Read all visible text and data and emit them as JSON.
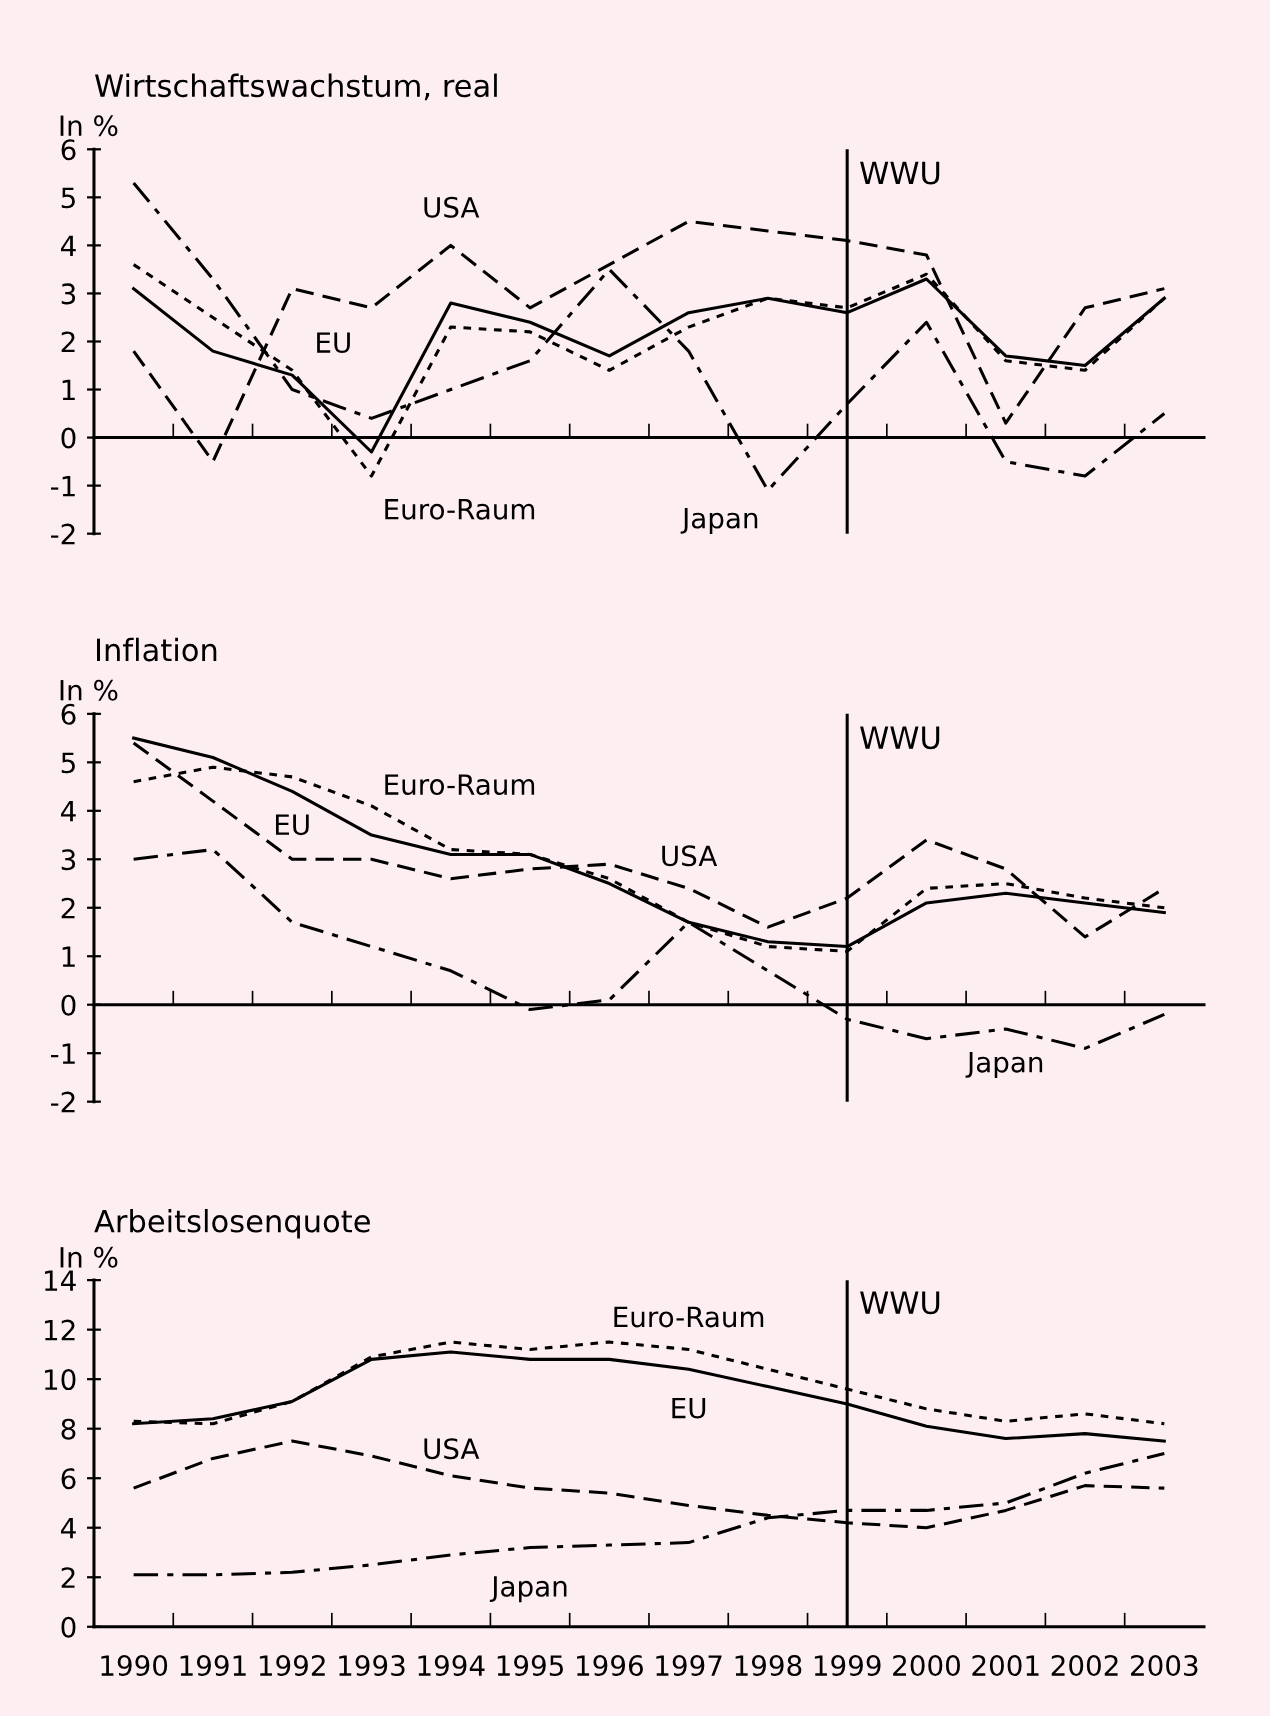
{
  "chart_data": [
    {
      "type": "line",
      "title": "Wirtschaftswachstum, real",
      "ylabel": "In %",
      "categories": [
        "1990",
        "1991",
        "1992",
        "1993",
        "1994",
        "1995",
        "1996",
        "1997",
        "1998",
        "1999",
        "2000",
        "2001",
        "2002",
        "2003"
      ],
      "series": [
        {
          "name": "EU",
          "color": "#000000",
          "line_style": "solid",
          "values": [
            3.1,
            1.8,
            1.3,
            -0.3,
            2.8,
            2.4,
            1.7,
            2.6,
            2.9,
            2.6,
            3.3,
            1.7,
            1.5,
            2.9
          ]
        },
        {
          "name": "Euro-Raum",
          "color": "#000000",
          "line_style": "dotted",
          "values": [
            3.6,
            2.5,
            1.4,
            -0.8,
            2.3,
            2.2,
            1.4,
            2.3,
            2.9,
            2.7,
            3.4,
            1.6,
            1.4,
            2.9
          ]
        },
        {
          "name": "USA",
          "color": "#000000",
          "line_style": "dashed",
          "values": [
            1.8,
            -0.5,
            3.1,
            2.7,
            4.0,
            2.7,
            3.6,
            4.5,
            4.3,
            4.1,
            3.8,
            0.3,
            2.7,
            3.1
          ]
        },
        {
          "name": "Japan",
          "color": "#000000",
          "line_style": "dashdot",
          "values": [
            5.3,
            3.3,
            1.0,
            0.4,
            1.0,
            1.6,
            3.5,
            1.8,
            -1.1,
            0.7,
            2.4,
            -0.5,
            -0.8,
            0.5
          ]
        }
      ],
      "ref_lines": [
        {
          "axis": "x",
          "value": "1999",
          "label": "WWU"
        }
      ],
      "ylim": [
        -2,
        6
      ],
      "yticks": [
        -2,
        -1,
        0,
        1,
        2,
        3,
        4,
        5,
        6
      ],
      "tick_labels": "y"
    },
    {
      "type": "line",
      "title": "Inflation",
      "ylabel": "In %",
      "categories": [
        "1990",
        "1991",
        "1992",
        "1993",
        "1994",
        "1995",
        "1996",
        "1997",
        "1998",
        "1999",
        "2000",
        "2001",
        "2002",
        "2003"
      ],
      "series": [
        {
          "name": "EU",
          "color": "#000000",
          "line_style": "solid",
          "values": [
            5.5,
            5.1,
            4.4,
            3.5,
            3.1,
            3.1,
            2.5,
            1.7,
            1.3,
            1.2,
            2.1,
            2.3,
            2.1,
            1.9
          ]
        },
        {
          "name": "Euro-Raum",
          "color": "#000000",
          "line_style": "dotted",
          "values": [
            4.6,
            4.9,
            4.7,
            4.1,
            3.2,
            3.1,
            2.6,
            1.7,
            1.2,
            1.1,
            2.4,
            2.5,
            2.2,
            2.0
          ]
        },
        {
          "name": "USA",
          "color": "#000000",
          "line_style": "dashed",
          "values": [
            5.4,
            4.2,
            3.0,
            3.0,
            2.6,
            2.8,
            2.9,
            2.4,
            1.6,
            2.2,
            3.4,
            2.8,
            1.4,
            2.4
          ]
        },
        {
          "name": "Japan",
          "color": "#000000",
          "line_style": "dashdot",
          "values": [
            3.0,
            3.2,
            1.7,
            1.2,
            0.7,
            -0.1,
            0.1,
            1.7,
            0.7,
            -0.3,
            -0.7,
            -0.5,
            -0.9,
            -0.2
          ]
        }
      ],
      "ref_lines": [
        {
          "axis": "x",
          "value": "1999",
          "label": "WWU"
        }
      ],
      "ylim": [
        -2,
        6
      ],
      "yticks": [
        -2,
        -1,
        0,
        1,
        2,
        3,
        4,
        5,
        6
      ],
      "tick_labels": "y"
    },
    {
      "type": "line",
      "title": "Arbeitslosenquote",
      "ylabel": "In %",
      "categories": [
        "1990",
        "1991",
        "1992",
        "1993",
        "1994",
        "1995",
        "1996",
        "1997",
        "1998",
        "1999",
        "2000",
        "2001",
        "2002",
        "2003"
      ],
      "series": [
        {
          "name": "EU",
          "color": "#000000",
          "line_style": "solid",
          "values": [
            8.2,
            8.4,
            9.1,
            10.8,
            11.1,
            10.8,
            10.8,
            10.4,
            9.7,
            9.0,
            8.1,
            7.6,
            7.8,
            7.5
          ]
        },
        {
          "name": "Euro-Raum",
          "color": "#000000",
          "line_style": "dotted",
          "values": [
            8.3,
            8.2,
            9.1,
            10.9,
            11.5,
            11.2,
            11.5,
            11.2,
            10.4,
            9.6,
            8.8,
            8.3,
            8.6,
            8.2
          ]
        },
        {
          "name": "USA",
          "color": "#000000",
          "line_style": "dashed",
          "values": [
            5.6,
            6.8,
            7.5,
            6.9,
            6.1,
            5.6,
            5.4,
            4.9,
            4.5,
            4.2,
            4.0,
            4.7,
            5.7,
            5.6
          ]
        },
        {
          "name": "Japan",
          "color": "#000000",
          "line_style": "dashdot",
          "values": [
            2.1,
            2.1,
            2.2,
            2.5,
            2.9,
            3.2,
            3.3,
            3.4,
            4.4,
            4.7,
            4.7,
            5.0,
            6.2,
            7.0
          ]
        }
      ],
      "ref_lines": [
        {
          "axis": "x",
          "value": "1999",
          "label": "WWU"
        }
      ],
      "ylim": [
        0,
        14
      ],
      "yticks": [
        0,
        2,
        4,
        6,
        8,
        10,
        12,
        14
      ]
    }
  ]
}
